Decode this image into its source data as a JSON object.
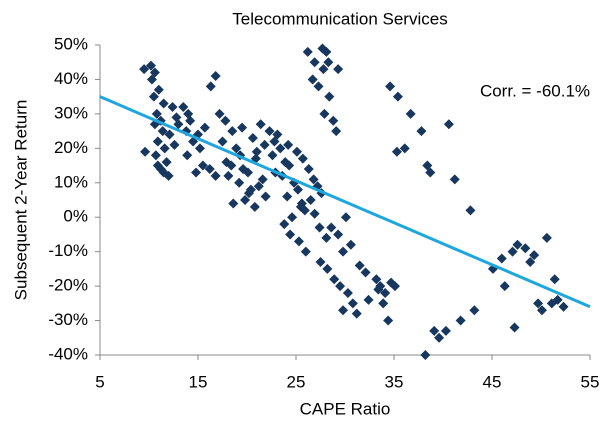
{
  "chart_data": {
    "type": "scatter",
    "title": "Telecommunication Services",
    "x_label": "CAPE Ratio",
    "y_label": "Subsequent 2-Year Return",
    "annotation": "Corr. = -60.1%",
    "color": "#17375e",
    "xlim": [
      5,
      55
    ],
    "xticks": [
      5,
      15,
      25,
      35,
      45,
      55
    ],
    "ylim": [
      -40,
      50
    ],
    "yticks": [
      {
        "value": -40,
        "label": "-40%"
      },
      {
        "value": -30,
        "label": "-30%"
      },
      {
        "value": -20,
        "label": "-20%"
      },
      {
        "value": -10,
        "label": "-10%"
      },
      {
        "value": 0,
        "label": "0%"
      },
      {
        "value": 10,
        "label": "10%"
      },
      {
        "value": 20,
        "label": "20%"
      },
      {
        "value": 30,
        "label": "30%"
      },
      {
        "value": 40,
        "label": "40%"
      },
      {
        "value": 50,
        "label": "50%"
      }
    ],
    "x": [
      9.5,
      10.2,
      10.6,
      10.3,
      11,
      10.5,
      11.5,
      10.8,
      11.2,
      10.6,
      11.4,
      10.9,
      11.6,
      10.7,
      11.8,
      11.2,
      12,
      9.6,
      12.4,
      12.8,
      12.1,
      12.6,
      10.9,
      11.5,
      13,
      13.5,
      14.2,
      13.8,
      14.5,
      15.2,
      13.9,
      15.5,
      14.8,
      16.2,
      16.8,
      15.7,
      16.3,
      16.8,
      14,
      15,
      17.2,
      17.8,
      18.5,
      17.5,
      18.9,
      19.3,
      17.9,
      18.4,
      19.6,
      20.1,
      18.1,
      19.2,
      20.4,
      19.8,
      18.6,
      21,
      20.6,
      19.5,
      21.4,
      21.8,
      20.9,
      21.6,
      21.2,
      20.2,
      21.9,
      20.8,
      22.3,
      22.8,
      23.4,
      22.6,
      23.9,
      24.3,
      22.9,
      23.6,
      24.8,
      25.2,
      24.1,
      25.6,
      25.9,
      24.6,
      23.8,
      24.4,
      25.3,
      26,
      23.1,
      24.2,
      25.1,
      25.7,
      26.3,
      26.8,
      27.2,
      27.6,
      26.5,
      25.5,
      26.9,
      27.4,
      28.1,
      26.2,
      26.9,
      27.8,
      26.7,
      27.3,
      28.4,
      27.9,
      28.8,
      29.1,
      28.3,
      29.3,
      27.7,
      28.1,
      27.5,
      28.2,
      28.9,
      29.5,
      30.3,
      30.8,
      31.2,
      29.8,
      30.6,
      29.3,
      28.6,
      30.1,
      31.5,
      32.1,
      32.4,
      29.8,
      33.2,
      33.6,
      34.1,
      33.9,
      34.4,
      35.1,
      34.7,
      33.4,
      34.6,
      35.4,
      36.7,
      37.8,
      36.1,
      38.4,
      38.7,
      35.3,
      38.2,
      39.6,
      39.1,
      40.6,
      41.2,
      42.8,
      41.8,
      43.2,
      40.3,
      45.1,
      46,
      47.6,
      47.1,
      46.3,
      49.7,
      50.1,
      47.3,
      50.6,
      48.9,
      51.4,
      51.7,
      52.3,
      51.1,
      48.4,
      49.3
    ],
    "values": [
      43,
      44,
      42,
      40,
      37,
      35,
      33,
      30,
      28,
      27,
      25,
      22,
      20,
      18,
      16,
      14,
      12,
      19,
      32,
      29,
      24,
      21,
      15,
      13,
      27,
      32,
      28,
      25,
      22,
      20,
      18,
      15,
      13,
      14,
      12,
      26,
      38,
      41,
      30,
      24,
      30,
      28,
      25,
      22,
      20,
      18,
      16,
      15,
      14,
      13,
      12,
      10,
      8,
      5,
      4,
      19,
      23,
      26,
      27,
      21,
      17,
      11,
      9,
      7,
      6,
      3,
      25,
      22,
      20,
      18,
      16,
      15,
      13,
      12,
      10,
      8,
      6,
      4,
      2,
      0,
      -2,
      -5,
      -7,
      -10,
      24,
      21,
      19,
      17,
      14,
      11,
      9,
      7,
      5,
      3,
      1,
      -3,
      -6,
      48,
      45,
      43,
      40,
      38,
      35,
      30,
      28,
      25,
      45,
      43,
      49,
      48,
      -13,
      -15,
      -18,
      -20,
      -22,
      -25,
      -28,
      -10,
      -8,
      -5,
      -3,
      0,
      -14,
      -16,
      -24,
      -27,
      -18,
      -20,
      -22,
      -25,
      -30,
      -20,
      -19,
      -21,
      38,
      35,
      30,
      25,
      20,
      15,
      13,
      19,
      -40,
      -35,
      -33,
      27,
      11,
      2,
      -30,
      -27,
      -33,
      -15,
      -12,
      -8,
      -10,
      -20,
      -25,
      -27,
      -32,
      -6,
      -13,
      -18,
      -24,
      -26,
      -25,
      -9,
      -11
    ],
    "trendline": {
      "x": [
        5,
        55
      ],
      "values": [
        35,
        -26
      ],
      "color": "#1ea7de"
    }
  }
}
